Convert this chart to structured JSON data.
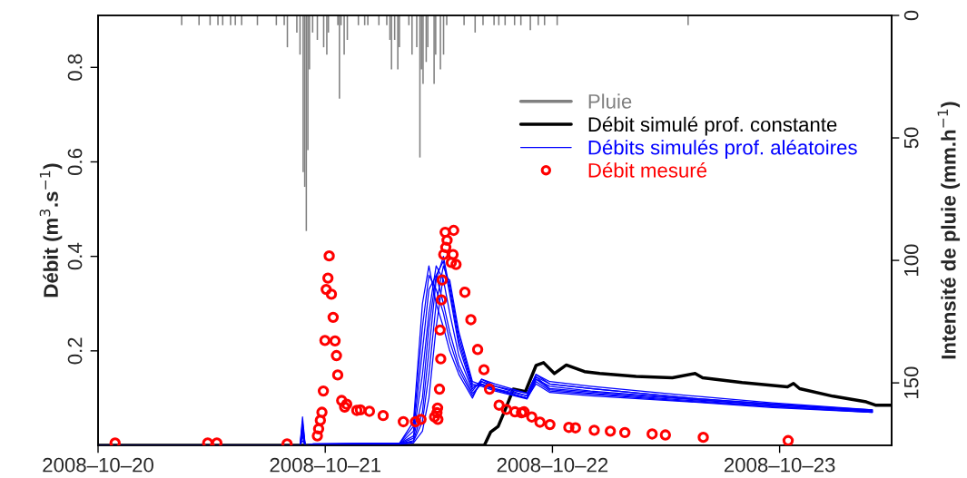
{
  "chart_data": {
    "type": "line",
    "ylabel": "Débit (m$^{3}$.s$^{−1}$)",
    "y2label": "Intensité de pluie (mm.h$^{−1}$)",
    "xlim": [
      "2008-10-20T00:00",
      "2008-10-23T11:50"
    ],
    "xticks": [
      {
        "value": "2008-10-20",
        "label": "2008–10–20"
      },
      {
        "value": "2008-10-21",
        "label": "2008–10–21"
      },
      {
        "value": "2008-10-22",
        "label": "2008–10–22"
      },
      {
        "value": "2008-10-23",
        "label": "2008–10–23"
      }
    ],
    "ylim": [
      0,
      0.91
    ],
    "yticks": [
      0.2,
      0.4,
      0.6,
      0.8
    ],
    "y2lim": [
      175.5,
      0
    ],
    "y2ticks": [
      0,
      50,
      100,
      150
    ],
    "legend": "top right",
    "series": [
      {
        "name": "Pluie",
        "type": "bar",
        "axis": "y2",
        "color": "#808080",
        "x": [
          "2008-10-20T08:50",
          "2008-10-20T10:40",
          "2008-10-20T11:50",
          "2008-10-20T12:40",
          "2008-10-20T13:10",
          "2008-10-20T14:00",
          "2008-10-20T14:30",
          "2008-10-20T15:10",
          "2008-10-20T16:50",
          "2008-10-20T18:50",
          "2008-10-20T19:40",
          "2008-10-20T20:00",
          "2008-10-20T21:00",
          "2008-10-20T21:20",
          "2008-10-20T21:40",
          "2008-10-20T21:50",
          "2008-10-20T22:00",
          "2008-10-20T22:10",
          "2008-10-20T22:20",
          "2008-10-20T22:40",
          "2008-10-20T23:10",
          "2008-10-20T23:50",
          "2008-10-21T00:10",
          "2008-10-21T00:20",
          "2008-10-21T01:20",
          "2008-10-21T01:30",
          "2008-10-21T01:40",
          "2008-10-21T02:00",
          "2008-10-21T02:20",
          "2008-10-21T03:30",
          "2008-10-21T04:10",
          "2008-10-21T04:30",
          "2008-10-21T05:40",
          "2008-10-21T06:30",
          "2008-10-21T06:50",
          "2008-10-21T07:00",
          "2008-10-21T07:20",
          "2008-10-21T07:40",
          "2008-10-21T07:50",
          "2008-10-21T08:50",
          "2008-10-21T09:10",
          "2008-10-21T09:40",
          "2008-10-21T10:00",
          "2008-10-21T10:10",
          "2008-10-21T10:20",
          "2008-10-21T10:40",
          "2008-10-21T10:50",
          "2008-10-21T11:30",
          "2008-10-21T11:40",
          "2008-10-21T12:10",
          "2008-10-21T12:30",
          "2008-10-21T12:50",
          "2008-10-21T14:40",
          "2008-10-21T15:50",
          "2008-10-21T16:40",
          "2008-10-21T17:50",
          "2008-10-21T18:20",
          "2008-10-21T19:00",
          "2008-10-21T20:00",
          "2008-10-21T20:40",
          "2008-10-21T21:40",
          "2008-10-21T22:30",
          "2008-10-21T23:10",
          "2008-10-22T00:30",
          "2008-10-22T14:20"
        ],
        "values": [
          4,
          4,
          4,
          4,
          4,
          4,
          4,
          4,
          4,
          4,
          4,
          13,
          7,
          16,
          64,
          70,
          88,
          55,
          22,
          7,
          10,
          13,
          16,
          7,
          4,
          34,
          4,
          16,
          10,
          4,
          4,
          4,
          4,
          4,
          10,
          22,
          10,
          22,
          13,
          4,
          16,
          13,
          58,
          22,
          28,
          19,
          13,
          28,
          16,
          22,
          16,
          4,
          4,
          7,
          4,
          4,
          4,
          4,
          4,
          4,
          6,
          4,
          4,
          4,
          4
        ]
      },
      {
        "name": "Débit simulé prof. constante",
        "color": "#000000",
        "x": [
          "2008-10-20T00:00",
          "2008-10-21T16:48",
          "2008-10-21T17:00",
          "2008-10-21T17:28",
          "2008-10-21T18:16",
          "2008-10-21T19:05",
          "2008-10-21T19:52",
          "2008-10-21T21:09",
          "2008-10-21T22:16",
          "2008-10-21T23:04",
          "2008-10-22T00:12",
          "2008-10-22T01:28",
          "2008-10-22T03:23",
          "2008-10-22T05:00",
          "2008-10-22T08:50",
          "2008-10-22T12:40",
          "2008-10-22T15:04",
          "2008-10-22T15:52",
          "2008-10-22T20:02",
          "2008-10-23T00:50",
          "2008-10-23T01:28",
          "2008-10-23T02:07",
          "2008-10-23T05:38",
          "2008-10-23T09:09",
          "2008-10-23T10:07",
          "2008-10-23T11:43"
        ],
        "values": [
          0,
          0,
          0.008,
          0.028,
          0.04,
          0.079,
          0.119,
          0.114,
          0.169,
          0.175,
          0.152,
          0.17,
          0.156,
          0.152,
          0.146,
          0.143,
          0.152,
          0.143,
          0.133,
          0.124,
          0.131,
          0.12,
          0.104,
          0.092,
          0.085,
          0.085
        ]
      },
      {
        "name": "Débits simulés prof. aléatoires",
        "color": "#0000ff",
        "x": [
          "2008-10-20T00:00",
          "2008-10-20T21:20",
          "2008-10-20T21:36",
          "2008-10-20T21:53",
          "2008-10-20T22:45",
          "2008-10-21T07:52",
          "2008-10-21T09:19",
          "2008-10-21T10:16",
          "2008-10-21T10:57",
          "2008-10-21T11:43",
          "2008-10-21T12:29",
          "2008-10-21T13:09",
          "2008-10-21T14:07",
          "2008-10-21T15:33",
          "2008-10-21T16:31",
          "2008-10-21T17:57",
          "2008-10-21T21:19",
          "2008-10-21T22:16",
          "2008-10-21T23:43",
          "2008-10-22T04:02",
          "2008-10-22T14:36",
          "2008-10-22T23:14",
          "2008-10-23T09:48"
        ],
        "values": [
          0,
          0,
          0.06,
          0,
          0.003,
          0.005,
          0.05,
          0.3,
          0.38,
          0.3,
          0.25,
          0.2,
          0.15,
          0.1,
          0.14,
          0.13,
          0.11,
          0.15,
          0.135,
          0.125,
          0.105,
          0.09,
          0.075
        ]
      },
      {
        "type": "line",
        "color": "#0000ff",
        "x": [
          "2008-10-20T00:00",
          "2008-10-20T21:20",
          "2008-10-20T21:36",
          "2008-10-20T21:53",
          "2008-10-20T22:45",
          "2008-10-21T07:52",
          "2008-10-21T09:19",
          "2008-10-21T10:16",
          "2008-10-21T10:57",
          "2008-10-21T11:43",
          "2008-10-21T12:29",
          "2008-10-21T13:09",
          "2008-10-21T14:07",
          "2008-10-21T15:33",
          "2008-10-21T16:31",
          "2008-10-21T17:57",
          "2008-10-21T21:19",
          "2008-10-21T22:16",
          "2008-10-21T23:43",
          "2008-10-22T04:02",
          "2008-10-22T14:36",
          "2008-10-22T23:14",
          "2008-10-23T09:48"
        ],
        "values": [
          0,
          0,
          0.05,
          0,
          0.003,
          0.005,
          0.04,
          0.25,
          0.36,
          0.33,
          0.28,
          0.22,
          0.16,
          0.105,
          0.135,
          0.125,
          0.105,
          0.145,
          0.13,
          0.12,
          0.1,
          0.088,
          0.073
        ]
      },
      {
        "type": "line",
        "color": "#0000ff",
        "x": [
          "2008-10-20T00:00",
          "2008-10-20T21:20",
          "2008-10-20T21:36",
          "2008-10-20T21:53",
          "2008-10-20T22:45",
          "2008-10-21T07:52",
          "2008-10-21T09:19",
          "2008-10-21T10:16",
          "2008-10-21T10:57",
          "2008-10-21T11:43",
          "2008-10-21T12:29",
          "2008-10-21T13:09",
          "2008-10-21T14:07",
          "2008-10-21T15:33",
          "2008-10-21T16:31",
          "2008-10-21T17:57",
          "2008-10-21T21:19",
          "2008-10-21T22:16",
          "2008-10-21T23:43",
          "2008-10-22T04:02",
          "2008-10-22T14:36",
          "2008-10-22T23:14",
          "2008-10-23T09:48"
        ],
        "values": [
          0,
          0,
          0.04,
          0,
          0.002,
          0.004,
          0.03,
          0.2,
          0.33,
          0.36,
          0.3,
          0.24,
          0.17,
          0.11,
          0.13,
          0.12,
          0.1,
          0.14,
          0.125,
          0.115,
          0.098,
          0.085,
          0.072
        ]
      },
      {
        "type": "line",
        "color": "#0000ff",
        "x": [
          "2008-10-20T00:00",
          "2008-10-20T21:20",
          "2008-10-20T21:36",
          "2008-10-20T21:53",
          "2008-10-20T22:45",
          "2008-10-21T07:52",
          "2008-10-21T09:19",
          "2008-10-21T10:16",
          "2008-10-21T10:57",
          "2008-10-21T11:43",
          "2008-10-21T12:29",
          "2008-10-21T13:09",
          "2008-10-21T14:07",
          "2008-10-21T15:33",
          "2008-10-21T16:31",
          "2008-10-21T17:57",
          "2008-10-21T21:19",
          "2008-10-21T22:16",
          "2008-10-21T23:43",
          "2008-10-22T04:02",
          "2008-10-22T14:36",
          "2008-10-22T23:14",
          "2008-10-23T09:48"
        ],
        "values": [
          0,
          0,
          0.03,
          0,
          0.002,
          0.004,
          0.02,
          0.15,
          0.28,
          0.38,
          0.35,
          0.28,
          0.19,
          0.115,
          0.14,
          0.125,
          0.11,
          0.15,
          0.13,
          0.12,
          0.1,
          0.087,
          0.075
        ]
      },
      {
        "type": "line",
        "color": "#0000ff",
        "x": [
          "2008-10-20T00:00",
          "2008-10-20T21:20",
          "2008-10-20T21:36",
          "2008-10-20T21:53",
          "2008-10-20T22:45",
          "2008-10-21T07:52",
          "2008-10-21T09:19",
          "2008-10-21T10:16",
          "2008-10-21T10:57",
          "2008-10-21T11:43",
          "2008-10-21T12:29",
          "2008-10-21T13:09",
          "2008-10-21T14:07",
          "2008-10-21T15:33",
          "2008-10-21T16:31",
          "2008-10-21T17:57",
          "2008-10-21T21:19",
          "2008-10-21T22:16",
          "2008-10-21T23:43",
          "2008-10-22T04:02",
          "2008-10-22T14:36",
          "2008-10-22T23:14",
          "2008-10-23T09:48"
        ],
        "values": [
          0,
          0,
          0.02,
          0,
          0.002,
          0.003,
          0.015,
          0.1,
          0.25,
          0.36,
          0.39,
          0.32,
          0.21,
          0.12,
          0.135,
          0.12,
          0.105,
          0.145,
          0.12,
          0.113,
          0.097,
          0.085,
          0.073
        ]
      },
      {
        "type": "line",
        "color": "#0000ff",
        "x": [
          "2008-10-20T00:00",
          "2008-10-20T21:20",
          "2008-10-20T21:36",
          "2008-10-20T21:53",
          "2008-10-20T22:45",
          "2008-10-21T07:52",
          "2008-10-21T09:19",
          "2008-10-21T10:16",
          "2008-10-21T10:57",
          "2008-10-21T11:43",
          "2008-10-21T12:29",
          "2008-10-21T13:09",
          "2008-10-21T14:07",
          "2008-10-21T15:33",
          "2008-10-21T16:31",
          "2008-10-21T17:57",
          "2008-10-21T21:19",
          "2008-10-21T22:16",
          "2008-10-21T23:43",
          "2008-10-22T04:02",
          "2008-10-22T14:36",
          "2008-10-22T23:14",
          "2008-10-23T09:48"
        ],
        "values": [
          0,
          0,
          0.03,
          0,
          0.002,
          0.003,
          0.01,
          0.07,
          0.2,
          0.35,
          0.4,
          0.33,
          0.22,
          0.125,
          0.13,
          0.118,
          0.1,
          0.14,
          0.118,
          0.11,
          0.095,
          0.083,
          0.071
        ]
      },
      {
        "type": "line",
        "color": "#0000ff",
        "x": [
          "2008-10-20T00:00",
          "2008-10-20T21:20",
          "2008-10-20T21:36",
          "2008-10-20T21:53",
          "2008-10-20T22:45",
          "2008-10-21T07:52",
          "2008-10-21T09:19",
          "2008-10-21T10:16",
          "2008-10-21T10:57",
          "2008-10-21T11:43",
          "2008-10-21T12:29",
          "2008-10-21T13:09",
          "2008-10-21T14:07",
          "2008-10-21T15:33",
          "2008-10-21T16:31",
          "2008-10-21T17:57",
          "2008-10-21T21:19",
          "2008-10-21T22:16",
          "2008-10-21T23:43",
          "2008-10-22T04:02",
          "2008-10-22T14:36",
          "2008-10-22T23:14",
          "2008-10-23T09:48"
        ],
        "values": [
          0,
          0,
          0.02,
          0,
          0.001,
          0.002,
          0.008,
          0.05,
          0.15,
          0.3,
          0.38,
          0.34,
          0.23,
          0.13,
          0.125,
          0.115,
          0.098,
          0.135,
          0.115,
          0.108,
          0.093,
          0.082,
          0.07
        ]
      },
      {
        "type": "line",
        "color": "#0000ff",
        "x": [
          "2008-10-20T00:00",
          "2008-10-20T21:20",
          "2008-10-20T21:36",
          "2008-10-20T21:53",
          "2008-10-20T22:45",
          "2008-10-21T07:52",
          "2008-10-21T09:19",
          "2008-10-21T10:16",
          "2008-10-21T10:57",
          "2008-10-21T11:43",
          "2008-10-21T12:29",
          "2008-10-21T13:09",
          "2008-10-21T14:07",
          "2008-10-21T15:33",
          "2008-10-21T16:31",
          "2008-10-21T17:57",
          "2008-10-21T21:19",
          "2008-10-21T22:16",
          "2008-10-21T23:43",
          "2008-10-22T04:02",
          "2008-10-22T14:36",
          "2008-10-22T23:14",
          "2008-10-23T09:48"
        ],
        "values": [
          0,
          0,
          0.01,
          0,
          0.001,
          0.002,
          0.005,
          0.03,
          0.1,
          0.25,
          0.36,
          0.35,
          0.24,
          0.135,
          0.128,
          0.118,
          0.1,
          0.13,
          0.112,
          0.105,
          0.092,
          0.08,
          0.07
        ]
      },
      {
        "name": "Débit mesuré",
        "type": "scatter",
        "marker": "circle",
        "color": "#ff0000",
        "x": [
          "2008-10-20T01:48",
          "2008-10-20T11:35",
          "2008-10-20T12:33",
          "2008-10-20T19:58",
          "2008-10-20T23:10",
          "2008-10-20T23:18",
          "2008-10-20T23:29",
          "2008-10-20T23:39",
          "2008-10-20T23:48",
          "2008-10-20T23:58",
          "2008-10-21T00:06",
          "2008-10-21T00:17",
          "2008-10-21T00:25",
          "2008-10-21T00:39",
          "2008-10-21T00:50",
          "2008-10-21T01:02",
          "2008-10-21T01:11",
          "2008-10-21T01:19",
          "2008-10-21T01:44",
          "2008-10-21T02:03",
          "2008-10-21T02:16",
          "2008-10-21T03:20",
          "2008-10-21T03:43",
          "2008-10-21T04:40",
          "2008-10-21T06:07",
          "2008-10-21T08:15",
          "2008-10-21T09:32",
          "2008-10-21T10:07",
          "2008-10-21T11:33",
          "2008-10-21T11:48",
          "2008-10-21T11:52",
          "2008-10-21T11:54",
          "2008-10-21T12:04",
          "2008-10-21T12:08",
          "2008-10-21T12:12",
          "2008-10-21T12:16",
          "2008-10-21T12:21",
          "2008-10-21T12:31",
          "2008-10-21T12:40",
          "2008-10-21T12:44",
          "2008-10-21T12:52",
          "2008-10-21T13:19",
          "2008-10-21T13:30",
          "2008-10-21T13:34",
          "2008-10-21T13:49",
          "2008-10-21T14:45",
          "2008-10-21T15:23",
          "2008-10-21T16:06",
          "2008-10-21T16:46",
          "2008-10-21T17:21",
          "2008-10-21T18:22",
          "2008-10-21T19:08",
          "2008-10-21T20:02",
          "2008-10-21T20:44",
          "2008-10-21T21:00",
          "2008-10-21T21:49",
          "2008-10-21T22:41",
          "2008-10-21T23:44",
          "2008-10-22T01:44",
          "2008-10-22T02:26",
          "2008-10-22T04:25",
          "2008-10-22T06:07",
          "2008-10-22T07:39",
          "2008-10-22T10:32",
          "2008-10-22T11:56",
          "2008-10-22T15:56",
          "2008-10-23T00:54"
        ],
        "values": [
          0.005,
          0.005,
          0.005,
          0.003,
          0.02,
          0.035,
          0.053,
          0.07,
          0.115,
          0.222,
          0.33,
          0.354,
          0.401,
          0.32,
          0.271,
          0.221,
          0.19,
          0.149,
          0.095,
          0.081,
          0.087,
          0.074,
          0.075,
          0.072,
          0.063,
          0.05,
          0.05,
          0.055,
          0.06,
          0.069,
          0.079,
          0.055,
          0.119,
          0.244,
          0.183,
          0.308,
          0.35,
          0.404,
          0.451,
          0.419,
          0.434,
          0.387,
          0.404,
          0.455,
          0.383,
          0.324,
          0.266,
          0.203,
          0.16,
          0.119,
          0.085,
          0.076,
          0.071,
          0.069,
          0.071,
          0.06,
          0.049,
          0.044,
          0.038,
          0.037,
          0.032,
          0.03,
          0.027,
          0.024,
          0.022,
          0.017,
          0.01
        ]
      }
    ]
  }
}
